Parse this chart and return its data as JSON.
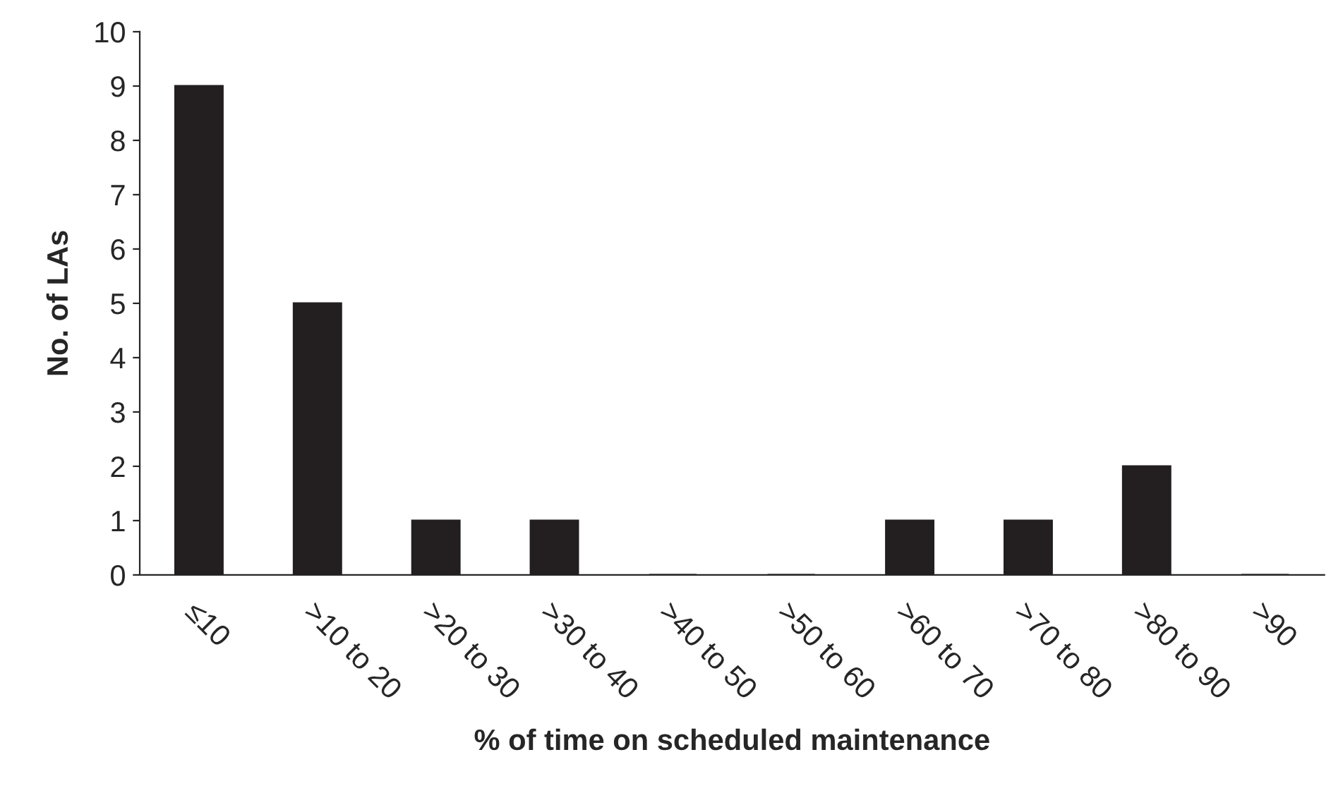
{
  "chart_data": {
    "type": "bar",
    "xlabel": "% of time on scheduled maintenance",
    "ylabel": "No. of LAs",
    "categories": [
      "≤10",
      ">10 to 20",
      ">20 to 30",
      ">30 to 40",
      ">40 to 50",
      ">50 to 60",
      ">60 to 70",
      ">70 to 80",
      ">80 to 90",
      ">90"
    ],
    "values": [
      9,
      5,
      1,
      1,
      0,
      0,
      1,
      1,
      2,
      0
    ],
    "color": "#231f20",
    "ylim": [
      0,
      10
    ],
    "yticks": [
      0,
      1,
      2,
      3,
      4,
      5,
      6,
      7,
      8,
      9,
      10
    ],
    "grid": false,
    "legend": false
  }
}
